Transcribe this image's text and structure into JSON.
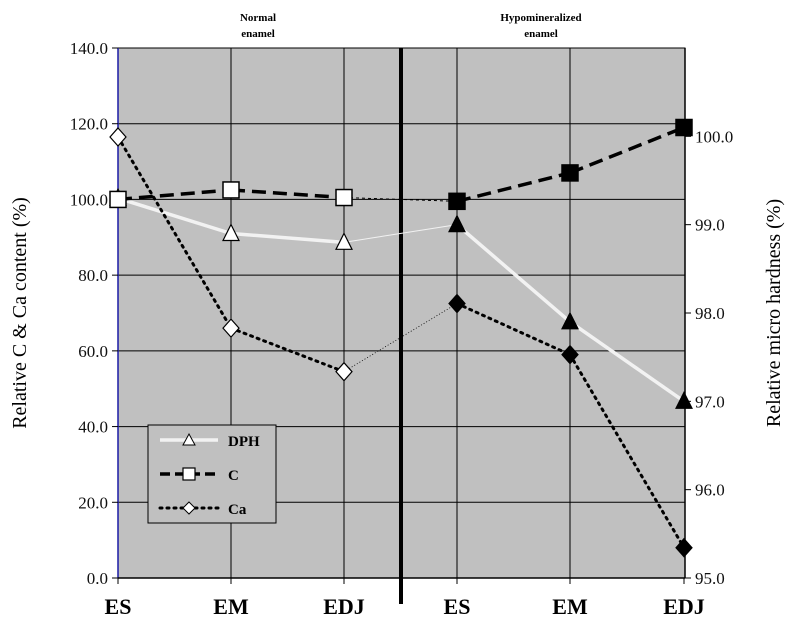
{
  "chart_data": {
    "type": "line",
    "categories": [
      "ES",
      "EM",
      "EDJ",
      "ES",
      "EM",
      "EDJ"
    ],
    "sections": [
      {
        "label_line1": "Normal",
        "label_line2": "enamel"
      },
      {
        "label_line1": "Hypomineralized",
        "label_line2": "enamel"
      }
    ],
    "left_axis": {
      "title": "Relative C & Ca content (%)",
      "min": 0,
      "max": 140,
      "step": 20,
      "tick_labels": [
        "0.0",
        "20.0",
        "40.0",
        "60.0",
        "80.0",
        "100.0",
        "120.0",
        "140.0"
      ]
    },
    "right_axis": {
      "title": "Relative micro hardness (%)",
      "min": 95,
      "max": 101,
      "step": 1,
      "tick_labels": [
        "95.0",
        "96.0",
        "97.0",
        "98.0",
        "99.0",
        "100.0"
      ]
    },
    "series": [
      {
        "name": "DPH",
        "axis": "right",
        "marker": "triangle",
        "line_color": "#f2f2f2",
        "values": [
          99.3,
          98.9,
          98.8,
          99.0,
          97.9,
          97.0
        ]
      },
      {
        "name": "C",
        "axis": "left",
        "marker": "square",
        "line_color": "#000000",
        "values": [
          100.0,
          102.5,
          100.5,
          99.5,
          107.0,
          119.0
        ]
      },
      {
        "name": "Ca",
        "axis": "left",
        "marker": "diamond",
        "line_color": "#000000",
        "values": [
          116.5,
          66.0,
          54.5,
          72.5,
          59.0,
          8.0
        ]
      }
    ],
    "grid": true,
    "legend_position": "bottom-left",
    "colors": {
      "plot_background": "#c0c0c0",
      "gridline": "#000000",
      "left_axis_line": "#1a1aa6"
    }
  }
}
